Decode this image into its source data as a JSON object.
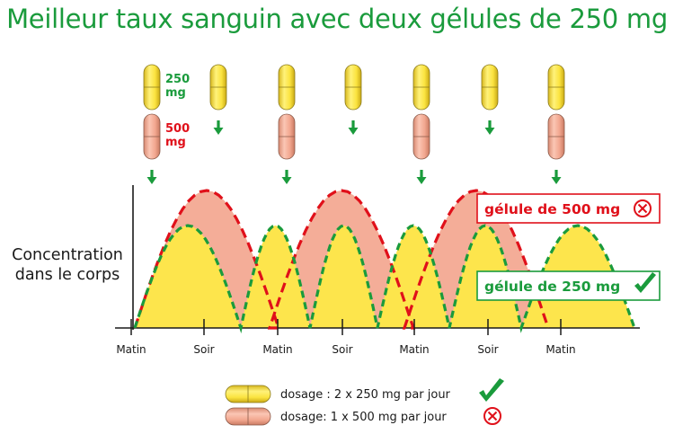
{
  "title": "Meilleur taux sanguin avec deux gélules de 250 mg",
  "ylabel_line1": "Concentration",
  "ylabel_line2": "dans le corps",
  "dose_labels": {
    "small_value": "250",
    "small_unit": "mg",
    "large_value": "500",
    "large_unit": "mg"
  },
  "x_ticks": [
    "Matin",
    "Soir",
    "Matin",
    "Soir",
    "Matin",
    "Soir",
    "Matin"
  ],
  "callouts": {
    "large": "gélule de 500 mg",
    "small": "gélule de 250 mg"
  },
  "legend": [
    {
      "label": "dosage : 2 x 250 mg par jour",
      "icon": "check-icon"
    },
    {
      "label": "dosage: 1 x 500 mg par jour",
      "icon": "cross-circle-icon"
    }
  ],
  "colors": {
    "green": "#1a9b3c",
    "red": "#e0101a",
    "yellow_fill": "#fde54c",
    "salmon_fill": "#f4ad98",
    "capsule_yellow": "#fbe33f",
    "capsule_salmon": "#f2a78f"
  }
}
